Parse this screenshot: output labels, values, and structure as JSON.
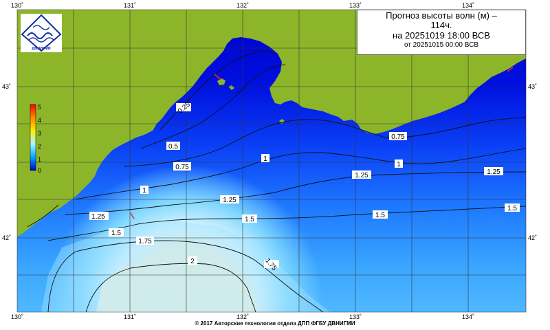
{
  "title": {
    "line1": "Прогноз высоты волн (м) –",
    "line2": "114ч.",
    "line3": "на 20251019 18:00 ВСВ",
    "line4": "от 20251015 00:00 ВСВ"
  },
  "logo_text": "ДВНИГМИ",
  "footer": "© 2017 Авторские технологии отдела ДПП ФГБУ ДВНИГМИ",
  "axes": {
    "lon_labels": [
      "130˚",
      "131˚",
      "132˚",
      "133˚",
      "134˚"
    ],
    "lat_labels": [
      "43˚",
      "42˚"
    ]
  },
  "legend": {
    "ticks": [
      "5",
      "4",
      "3",
      "2",
      "1",
      "0"
    ],
    "colors": [
      "#ff0000",
      "#ff8800",
      "#ffee00",
      "#7fd4ff",
      "#00aaff",
      "#0000cc"
    ]
  },
  "contour_labels": [
    "0.25",
    "0.5",
    "0.75",
    "1",
    "1.25",
    "1.5",
    "1.75",
    "2",
    "0.75",
    "1",
    "1.25",
    "1.25",
    "1.5",
    "1.5",
    "1.75",
    "1"
  ],
  "colors": {
    "land": "#8db52a",
    "deep_blue": "#0000d8",
    "mid_blue": "#1a55ff",
    "light_blue": "#55c0ff",
    "cyan": "#a9e8ff",
    "cream": "#f6f3dc"
  }
}
